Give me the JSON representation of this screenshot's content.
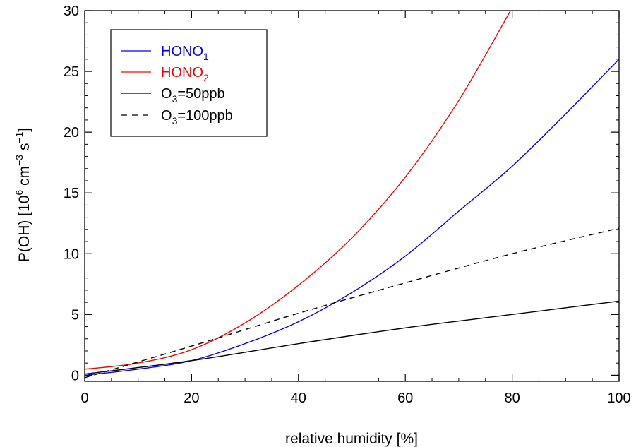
{
  "chart_data": {
    "type": "line",
    "xlabel": "relative humidity [%]",
    "ylabel": {
      "main": "P(OH) [10",
      "exp1": "6",
      "mid1": " cm",
      "exp2": "−3",
      "mid2": " s",
      "exp3": "−1",
      "end": "]"
    },
    "xlim": [
      0,
      100
    ],
    "ylim": [
      -0.5,
      30
    ],
    "x_ticks": [
      0,
      20,
      40,
      60,
      80,
      100
    ],
    "y_ticks": [
      0,
      5,
      10,
      15,
      20,
      25,
      30
    ],
    "grid": false,
    "legend_position": "top-left",
    "series": [
      {
        "name": "HONO",
        "name_sub": "1",
        "color": "#0000ff",
        "style": "solid",
        "x": [
          0,
          10,
          20,
          30,
          40,
          50,
          60,
          70,
          80,
          90,
          100
        ],
        "y": [
          0,
          0.5,
          1.2,
          2.6,
          4.4,
          6.8,
          9.8,
          13.5,
          17.2,
          21.5,
          26.0
        ]
      },
      {
        "name": "HONO",
        "name_sub": "2",
        "color": "#ff0000",
        "style": "solid",
        "x": [
          0,
          10,
          20,
          30,
          40,
          50,
          60,
          70,
          79.7
        ],
        "y": [
          0.5,
          1.0,
          2.1,
          4.3,
          7.4,
          11.3,
          16.3,
          22.6,
          30.0
        ]
      },
      {
        "name": "O",
        "name_sub": "3",
        "name_suffix": "=50ppb",
        "color": "#000000",
        "style": "solid",
        "x": [
          0,
          20,
          40,
          60,
          80,
          100
        ],
        "y": [
          0.1,
          1.2,
          2.6,
          3.9,
          5.0,
          6.1
        ]
      },
      {
        "name": "O",
        "name_sub": "3",
        "name_suffix": "=100ppb",
        "color": "#000000",
        "style": "dashed",
        "x": [
          0,
          20,
          40,
          60,
          80,
          100
        ],
        "y": [
          -0.2,
          2.4,
          5.1,
          7.6,
          10.0,
          12.1
        ]
      }
    ]
  }
}
